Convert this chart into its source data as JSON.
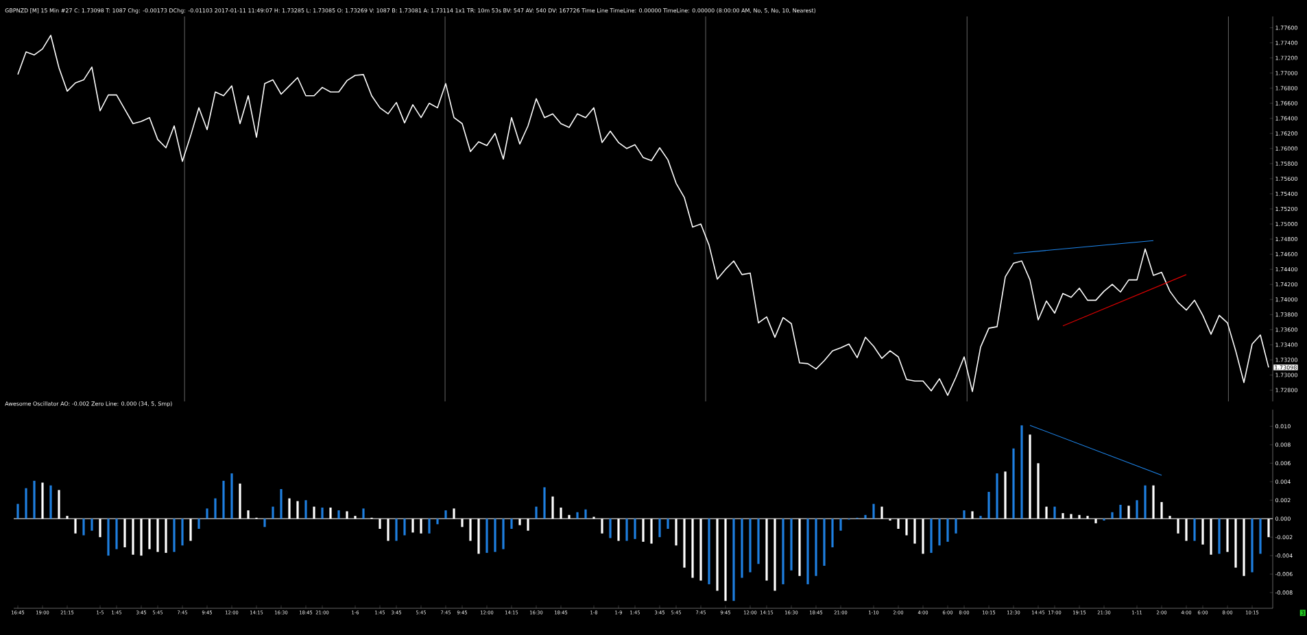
{
  "chart_data": [
    {
      "type": "line",
      "title": "GBPNZD [M]  15 Min   #27 C: 1.73098  T: 1087  Chg: -0.00173  DChg: -0.01103  2017-01-11 11:49:07  H: 1.73285  L: 1.73085  O: 1.73269  V: 1087  B: 1.73081  A: 1.73114  1x1  TR: 10m 53s  BV: 547  AV: 540  DV: 167726  Time Line  TimeLine: 0.00000  TimeLine: 0.00000  (8:00:00 AM, No, 5, No, 10, Nearest)",
      "categories": [
        null,
        null,
        null,
        null,
        null,
        null,
        null,
        null,
        null,
        null,
        null,
        null,
        null,
        null,
        null,
        null,
        null,
        null,
        null,
        null,
        null,
        null,
        null,
        null,
        null,
        null,
        null,
        null,
        null,
        null,
        null,
        null,
        null,
        null,
        null,
        null,
        null,
        null,
        null,
        null,
        null,
        null,
        null,
        null,
        null,
        null,
        null,
        null,
        null,
        null,
        null,
        null,
        null,
        null,
        null,
        null,
        null,
        null,
        null,
        null,
        null,
        null,
        null,
        null,
        null,
        null,
        null,
        null,
        null,
        null,
        null,
        null,
        null,
        null,
        null,
        null,
        null,
        null,
        null,
        null,
        null,
        null,
        null,
        null,
        null,
        null,
        null,
        null,
        null,
        null,
        null,
        null,
        null,
        null,
        null,
        null,
        null,
        null,
        null,
        null,
        null,
        null,
        null,
        null,
        null,
        null,
        null,
        null,
        null,
        null,
        null,
        null,
        null,
        null,
        null,
        null,
        null,
        null,
        null,
        null,
        null,
        null,
        null,
        null,
        null,
        null,
        null,
        null,
        null,
        null,
        null,
        null,
        null,
        null,
        null,
        null,
        null,
        null,
        null,
        null,
        null,
        null,
        null,
        null,
        null,
        null,
        null,
        null,
        null,
        null,
        null,
        null,
        null
      ],
      "tick_labels": "y",
      "ylim": [
        1.7265,
        1.7775
      ],
      "yticks": [
        {
          "value": 1.728,
          "label": "1.72800"
        },
        {
          "value": 1.73,
          "label": "1.73000"
        },
        {
          "value": 1.732,
          "label": "1.73200"
        },
        {
          "value": 1.734,
          "label": "1.73400"
        },
        {
          "value": 1.736,
          "label": "1.73600"
        },
        {
          "value": 1.738,
          "label": "1.73800"
        },
        {
          "value": 1.74,
          "label": "1.74000"
        },
        {
          "value": 1.742,
          "label": "1.74200"
        },
        {
          "value": 1.744,
          "label": "1.74400"
        },
        {
          "value": 1.746,
          "label": "1.74600"
        },
        {
          "value": 1.748,
          "label": "1.74800"
        },
        {
          "value": 1.75,
          "label": "1.75000"
        },
        {
          "value": 1.752,
          "label": "1.75200"
        },
        {
          "value": 1.754,
          "label": "1.75400"
        },
        {
          "value": 1.756,
          "label": "1.75600"
        },
        {
          "value": 1.758,
          "label": "1.75800"
        },
        {
          "value": 1.76,
          "label": "1.76000"
        },
        {
          "value": 1.762,
          "label": "1.76200"
        },
        {
          "value": 1.764,
          "label": "1.76400"
        },
        {
          "value": 1.766,
          "label": "1.76600"
        },
        {
          "value": 1.768,
          "label": "1.76800"
        },
        {
          "value": 1.77,
          "label": "1.77000"
        },
        {
          "value": 1.772,
          "label": "1.77200"
        },
        {
          "value": 1.774,
          "label": "1.77400"
        },
        {
          "value": 1.776,
          "label": "1.77600"
        }
      ],
      "series": [
        {
          "color": "#ffffff",
          "values": [
            1.7698,
            1.7728,
            1.7724,
            1.7732,
            1.775,
            1.7707,
            1.7676,
            1.7687,
            1.7691,
            1.7708,
            1.765,
            1.7671,
            1.7671,
            1.7652,
            1.7633,
            1.7636,
            1.7641,
            1.7612,
            1.7601,
            1.763,
            1.7583,
            1.7617,
            1.7654,
            1.7625,
            1.7675,
            1.767,
            1.7683,
            1.7633,
            1.767,
            1.7615,
            1.7686,
            1.7691,
            1.7672,
            1.7683,
            1.7694,
            1.767,
            1.767,
            1.7681,
            1.7675,
            1.7675,
            1.769,
            1.7697,
            1.7698,
            1.767,
            1.7654,
            1.7646,
            1.7661,
            1.7634,
            1.7658,
            1.7641,
            1.766,
            1.7654,
            1.7686,
            1.7641,
            1.7633,
            1.7596,
            1.7609,
            1.7604,
            1.762,
            1.7586,
            1.7641,
            1.7606,
            1.763,
            1.7666,
            1.7641,
            1.7646,
            1.7633,
            1.7628,
            1.7646,
            1.7641,
            1.7654,
            1.7608,
            1.7623,
            1.7608,
            1.76,
            1.7605,
            1.7588,
            1.7584,
            1.7601,
            1.7585,
            1.7554,
            1.7535,
            1.7496,
            1.75,
            1.7472,
            1.7427,
            1.744,
            1.7451,
            1.7433,
            1.7435,
            1.7369,
            1.7377,
            1.735,
            1.7376,
            1.7368,
            1.7316,
            1.7315,
            1.7308,
            1.7319,
            1.7332,
            1.7336,
            1.7341,
            1.7323,
            1.735,
            1.7338,
            1.7322,
            1.7332,
            1.7324,
            1.7294,
            1.7292,
            1.7292,
            1.7279,
            1.7295,
            1.7273,
            1.7297,
            1.7324,
            1.7278,
            1.7337,
            1.7362,
            1.7364,
            1.743,
            1.7448,
            1.7451,
            1.7426,
            1.7373,
            1.7398,
            1.7382,
            1.7408,
            1.7403,
            1.7415,
            1.7399,
            1.7399,
            1.7411,
            1.742,
            1.741,
            1.7426,
            1.7426,
            1.7467,
            1.7432,
            1.7436,
            1.7411,
            1.7396,
            1.7386,
            1.7399,
            1.7379,
            1.7354,
            1.7379,
            1.7369,
            1.7332,
            1.729,
            1.7341,
            1.7353,
            1.731
          ]
        },
        {
          "color": "#1e88f0",
          "values": [
            null,
            null,
            null,
            null,
            null,
            null,
            null,
            null,
            null,
            null,
            null,
            null,
            null,
            null,
            null,
            null,
            null,
            null,
            null,
            null,
            null,
            null,
            null,
            null,
            null,
            null,
            null,
            null,
            null,
            null,
            null,
            null,
            null,
            null,
            null,
            null,
            null,
            null,
            null,
            null,
            null,
            null,
            null,
            null,
            null,
            null,
            null,
            null,
            null,
            null,
            null,
            null,
            null,
            null,
            null,
            null,
            null,
            null,
            null,
            null,
            null,
            null,
            null,
            null,
            null,
            null,
            null,
            null,
            null,
            null,
            null,
            null,
            null,
            null,
            null,
            null,
            null,
            null,
            null,
            null,
            null,
            null,
            null,
            null,
            null,
            null,
            null,
            null,
            null,
            null,
            null,
            null,
            null,
            null,
            null,
            null,
            null,
            null,
            null,
            null,
            null,
            null,
            null,
            null,
            null,
            null,
            null,
            null,
            null,
            null,
            null,
            null,
            null,
            null,
            null,
            null,
            null,
            null,
            null,
            null,
            null,
            1.7461,
            null,
            null,
            null,
            null,
            null,
            null,
            null,
            null,
            null,
            null,
            null,
            null,
            null,
            null,
            null,
            null,
            1.7478,
            null,
            null,
            null,
            null,
            null,
            null,
            null,
            null,
            null,
            null,
            null,
            null,
            null,
            null
          ]
        },
        {
          "color": "#e00000",
          "values": [
            null,
            null,
            null,
            null,
            null,
            null,
            null,
            null,
            null,
            null,
            null,
            null,
            null,
            null,
            null,
            null,
            null,
            null,
            null,
            null,
            null,
            null,
            null,
            null,
            null,
            null,
            null,
            null,
            null,
            null,
            null,
            null,
            null,
            null,
            null,
            null,
            null,
            null,
            null,
            null,
            null,
            null,
            null,
            null,
            null,
            null,
            null,
            null,
            null,
            null,
            null,
            null,
            null,
            null,
            null,
            null,
            null,
            null,
            null,
            null,
            null,
            null,
            null,
            null,
            null,
            null,
            null,
            null,
            null,
            null,
            null,
            null,
            null,
            null,
            null,
            null,
            null,
            null,
            null,
            null,
            null,
            null,
            null,
            null,
            null,
            null,
            null,
            null,
            null,
            null,
            null,
            null,
            null,
            null,
            null,
            null,
            null,
            null,
            null,
            null,
            null,
            null,
            null,
            null,
            null,
            null,
            null,
            null,
            null,
            null,
            null,
            null,
            null,
            null,
            null,
            null,
            null,
            null,
            null,
            null,
            null,
            null,
            null,
            null,
            null,
            null,
            null,
            1.7365,
            null,
            null,
            null,
            null,
            null,
            null,
            null,
            null,
            null,
            null,
            null,
            null,
            null,
            null,
            1.7433,
            null,
            null,
            null,
            null,
            null,
            null,
            null,
            null,
            null,
            null
          ]
        }
      ],
      "annotations": [
        "1.73098"
      ]
    },
    {
      "type": "bar",
      "title": "Awesome Oscillator  AO: -0.002  Zero Line: 0.000   (34, 5, Smp)",
      "categories": [
        "16:45",
        null,
        null,
        "19:00",
        null,
        null,
        "21:15",
        null,
        null,
        null,
        "1-5",
        null,
        "1:45",
        null,
        null,
        "3:45",
        null,
        "5:45",
        null,
        null,
        "7:45",
        null,
        null,
        "9:45",
        null,
        null,
        "12:00",
        null,
        null,
        "14:15",
        null,
        null,
        "16:30",
        null,
        null,
        "18:45",
        null,
        "21:00",
        null,
        null,
        null,
        "1-6",
        null,
        null,
        "1:45",
        null,
        "3:45",
        null,
        null,
        "5:45",
        null,
        null,
        "7:45",
        null,
        "9:45",
        null,
        null,
        "12:00",
        null,
        null,
        "14:15",
        null,
        null,
        "16:30",
        null,
        null,
        "18:45",
        null,
        null,
        null,
        "1-8",
        null,
        null,
        "1-9",
        null,
        "1:45",
        null,
        null,
        "3:45",
        null,
        "5:45",
        null,
        null,
        "7:45",
        null,
        null,
        "9:45",
        null,
        null,
        "12:00",
        null,
        "14:15",
        null,
        null,
        "16:30",
        null,
        null,
        "18:45",
        null,
        null,
        "21:00",
        null,
        null,
        null,
        "1-10",
        null,
        null,
        "2:00",
        null,
        null,
        "4:00",
        null,
        null,
        "6:00",
        null,
        "8:00",
        null,
        null,
        "10:15",
        null,
        null,
        "12:30",
        null,
        null,
        "14:45",
        null,
        "17:00",
        null,
        null,
        "19:15",
        null,
        null,
        "21:30",
        null,
        null,
        null,
        "1-11",
        null,
        null,
        "2:00",
        null,
        null,
        "4:00",
        null,
        "6:00",
        null,
        null,
        "8:00",
        null,
        null,
        "10:15",
        null,
        null
      ],
      "ylim": [
        -0.0097,
        0.0118
      ],
      "yticks": [
        {
          "value": -0.008,
          "label": "-0.008"
        },
        {
          "value": -0.006,
          "label": "-0.006"
        },
        {
          "value": -0.004,
          "label": "-0.004"
        },
        {
          "value": -0.002,
          "label": "-0.002"
        },
        {
          "value": 0,
          "label": "0.000"
        },
        {
          "value": 0.002,
          "label": "0.002"
        },
        {
          "value": 0.004,
          "label": "0.004"
        },
        {
          "value": 0.006,
          "label": "0.006"
        },
        {
          "value": 0.008,
          "label": "0.008"
        },
        {
          "value": 0.01,
          "label": "0.010"
        }
      ],
      "ref_lines": [
        {
          "axis": "y",
          "value": 0,
          "color": "#ffffff"
        }
      ],
      "series": [
        {
          "type": "bar",
          "values": [
            0.0016,
            0.0033,
            0.0041,
            0.0039,
            0.0036,
            0.0031,
            0.0003,
            -0.0016,
            -0.0018,
            -0.0013,
            -0.002,
            -0.004,
            -0.0033,
            -0.0031,
            -0.0039,
            -0.004,
            -0.0033,
            -0.0036,
            -0.0037,
            -0.0036,
            -0.0029,
            -0.0024,
            -0.0011,
            0.0011,
            0.0022,
            0.0041,
            0.0049,
            0.0038,
            0.0009,
            0.0001,
            -0.0009,
            0.0013,
            0.0032,
            0.0022,
            0.0019,
            0.002,
            0.0013,
            0.0012,
            0.0012,
            0.0009,
            0.0008,
            0.0003,
            0.0011,
            0.0001,
            -0.0011,
            -0.0024,
            -0.0024,
            -0.0018,
            -0.0015,
            -0.0016,
            -0.0016,
            -0.0006,
            0.0009,
            0.0011,
            -0.0009,
            -0.0024,
            -0.0038,
            -0.0037,
            -0.0036,
            -0.0033,
            -0.0011,
            -0.0007,
            -0.0013,
            0.0013,
            0.0034,
            0.0024,
            0.0012,
            0.0004,
            0.0007,
            0.001,
            0.0002,
            -0.0016,
            -0.0021,
            -0.0024,
            -0.0024,
            -0.0022,
            -0.0025,
            -0.0027,
            -0.002,
            -0.0011,
            -0.0029,
            -0.0053,
            -0.0064,
            -0.0067,
            -0.0071,
            -0.0078,
            -0.0089,
            -0.0089,
            -0.0064,
            -0.0058,
            -0.0049,
            -0.0067,
            -0.0078,
            -0.0071,
            -0.0056,
            -0.0062,
            -0.0071,
            -0.0062,
            -0.0051,
            -0.0031,
            -0.0013,
            -0.0001,
            0.0001,
            0.0004,
            0.0016,
            0.0013,
            -0.0002,
            -0.0011,
            -0.0018,
            -0.0027,
            -0.0038,
            -0.0037,
            -0.0029,
            -0.0025,
            -0.0016,
            0.0009,
            0.0008,
            0.0003,
            0.0029,
            0.0049,
            0.0051,
            0.0076,
            0.0101,
            0.0091,
            0.006,
            0.0013,
            0.0013,
            0.0006,
            0.0005,
            0.0004,
            0.0003,
            -0.0005,
            -0.0002,
            0.0007,
            0.0015,
            0.0014,
            0.002,
            0.0036,
            0.0036,
            0.0018,
            0.0003,
            -0.0016,
            -0.0024,
            -0.0024,
            -0.0028,
            -0.0039,
            -0.0038,
            -0.0036,
            -0.0053,
            -0.0062,
            -0.0058,
            -0.0038,
            -0.002
          ],
          "colors": [
            "#1e7fe0",
            "#1e7fe0",
            "#1e7fe0",
            "#ffffff",
            "#1e7fe0",
            "#ffffff",
            "#ffffff",
            "#ffffff",
            "#1e7fe0",
            "#1e7fe0",
            "#ffffff",
            "#1e7fe0",
            "#1e7fe0",
            "#ffffff",
            "#ffffff",
            "#ffffff",
            "#ffffff",
            "#ffffff",
            "#ffffff",
            "#1e7fe0",
            "#1e7fe0",
            "#ffffff",
            "#1e7fe0",
            "#1e7fe0",
            "#1e7fe0",
            "#1e7fe0",
            "#1e7fe0",
            "#ffffff",
            "#ffffff",
            "#ffffff",
            "#1e7fe0",
            "#1e7fe0",
            "#1e7fe0",
            "#ffffff",
            "#ffffff",
            "#1e7fe0",
            "#ffffff",
            "#1e7fe0",
            "#ffffff",
            "#1e7fe0",
            "#ffffff",
            "#ffffff",
            "#1e7fe0",
            "#ffffff",
            "#ffffff",
            "#ffffff",
            "#1e7fe0",
            "#1e7fe0",
            "#ffffff",
            "#ffffff",
            "#1e7fe0",
            "#1e7fe0",
            "#1e7fe0",
            "#ffffff",
            "#ffffff",
            "#ffffff",
            "#ffffff",
            "#1e7fe0",
            "#1e7fe0",
            "#1e7fe0",
            "#1e7fe0",
            "#ffffff",
            "#ffffff",
            "#1e7fe0",
            "#1e7fe0",
            "#ffffff",
            "#ffffff",
            "#ffffff",
            "#1e7fe0",
            "#1e7fe0",
            "#ffffff",
            "#ffffff",
            "#1e7fe0",
            "#ffffff",
            "#1e7fe0",
            "#1e7fe0",
            "#ffffff",
            "#ffffff",
            "#1e7fe0",
            "#1e7fe0",
            "#ffffff",
            "#ffffff",
            "#ffffff",
            "#ffffff",
            "#1e7fe0",
            "#ffffff",
            "#ffffff",
            "#1e7fe0",
            "#1e7fe0",
            "#1e7fe0",
            "#1e7fe0",
            "#ffffff",
            "#ffffff",
            "#1e7fe0",
            "#1e7fe0",
            "#ffffff",
            "#1e7fe0",
            "#1e7fe0",
            "#1e7fe0",
            "#1e7fe0",
            "#1e7fe0",
            "#1e7fe0",
            "#1e7fe0",
            "#1e7fe0",
            "#1e7fe0",
            "#ffffff",
            "#ffffff",
            "#ffffff",
            "#ffffff",
            "#ffffff",
            "#ffffff",
            "#1e7fe0",
            "#1e7fe0",
            "#1e7fe0",
            "#1e7fe0",
            "#1e7fe0",
            "#ffffff",
            "#1e7fe0",
            "#1e7fe0",
            "#1e7fe0",
            "#ffffff",
            "#1e7fe0",
            "#1e7fe0",
            "#ffffff",
            "#ffffff",
            "#ffffff",
            "#1e7fe0",
            "#ffffff",
            "#ffffff",
            "#ffffff",
            "#ffffff",
            "#ffffff",
            "#1e7fe0",
            "#1e7fe0",
            "#1e7fe0",
            "#ffffff",
            "#1e7fe0",
            "#1e7fe0",
            "#ffffff",
            "#ffffff",
            "#ffffff",
            "#ffffff",
            "#ffffff",
            "#1e7fe0",
            "#ffffff",
            "#ffffff",
            "#1e7fe0",
            "#ffffff",
            "#ffffff",
            "#ffffff",
            "#1e7fe0",
            "#1e7fe0",
            "#ffffff"
          ]
        },
        {
          "type": "line",
          "color": "#1e88f0",
          "values": [
            null,
            null,
            null,
            null,
            null,
            null,
            null,
            null,
            null,
            null,
            null,
            null,
            null,
            null,
            null,
            null,
            null,
            null,
            null,
            null,
            null,
            null,
            null,
            null,
            null,
            null,
            null,
            null,
            null,
            null,
            null,
            null,
            null,
            null,
            null,
            null,
            null,
            null,
            null,
            null,
            null,
            null,
            null,
            null,
            null,
            null,
            null,
            null,
            null,
            null,
            null,
            null,
            null,
            null,
            null,
            null,
            null,
            null,
            null,
            null,
            null,
            null,
            null,
            null,
            null,
            null,
            null,
            null,
            null,
            null,
            null,
            null,
            null,
            null,
            null,
            null,
            null,
            null,
            null,
            null,
            null,
            null,
            null,
            null,
            null,
            null,
            null,
            null,
            null,
            null,
            null,
            null,
            null,
            null,
            null,
            null,
            null,
            null,
            null,
            null,
            null,
            null,
            null,
            null,
            null,
            null,
            null,
            null,
            null,
            null,
            null,
            null,
            null,
            null,
            null,
            null,
            null,
            null,
            null,
            null,
            null,
            null,
            null,
            0.0101,
            null,
            null,
            null,
            null,
            null,
            null,
            null,
            null,
            null,
            null,
            null,
            null,
            null,
            null,
            null,
            0.0047,
            null,
            null,
            null,
            null,
            null,
            null,
            null,
            null,
            null,
            null,
            null,
            null,
            null
          ]
        }
      ],
      "annotations": [
        "3"
      ]
    }
  ]
}
